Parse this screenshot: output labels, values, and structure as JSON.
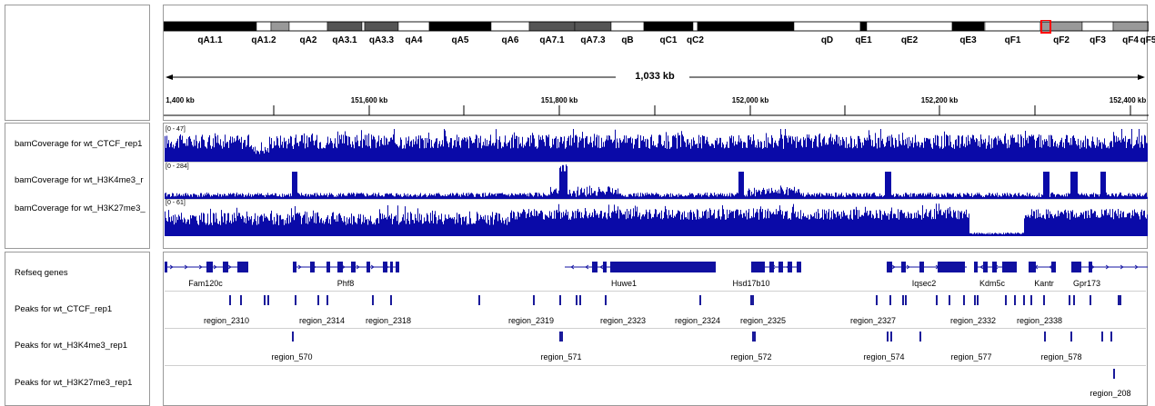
{
  "cytoband": {
    "bands": [
      {
        "name": "qA1.1",
        "stain": "black"
      },
      {
        "name": "qA1.2",
        "stain": "white"
      },
      {
        "name": "",
        "stain": "gray"
      },
      {
        "name": "qA2",
        "stain": "white"
      },
      {
        "name": "qA3.1",
        "stain": "dark"
      },
      {
        "name": "",
        "stain": "white"
      },
      {
        "name": "qA3.3",
        "stain": "dark"
      },
      {
        "name": "qA4",
        "stain": "white"
      },
      {
        "name": "qA5",
        "stain": "black"
      },
      {
        "name": "qA6",
        "stain": "white"
      },
      {
        "name": "qA7.1",
        "stain": "dark"
      },
      {
        "name": "qA7.3",
        "stain": "dark"
      },
      {
        "name": "qB",
        "stain": "white"
      },
      {
        "name": "qC1",
        "stain": "black"
      },
      {
        "name": "qC2",
        "stain": "white"
      },
      {
        "name": "",
        "stain": "black"
      },
      {
        "name": "qD",
        "stain": "white"
      },
      {
        "name": "qE1",
        "stain": "black"
      },
      {
        "name": "qE2",
        "stain": "white"
      },
      {
        "name": "qE3",
        "stain": "black"
      },
      {
        "name": "",
        "stain": "white"
      },
      {
        "name": "qF1",
        "stain": "white"
      },
      {
        "name": "qF2",
        "stain": "gray"
      },
      {
        "name": "qF3",
        "stain": "white"
      },
      {
        "name": "qF4",
        "stain": "gray"
      },
      {
        "name": "qF5",
        "stain": "white"
      }
    ],
    "colors": {
      "black": "#000000",
      "dark": "#555555",
      "gray": "#999999",
      "white": "#ffffff",
      "highlight": "#ff0000"
    }
  },
  "ruler": {
    "span_label": "1,033 kb",
    "ticks": [
      "1,400 kb",
      "151,600 kb",
      "151,800 kb",
      "152,000 kb",
      "152,200 kb",
      "152,400 kb"
    ]
  },
  "tracks": {
    "coverage": [
      {
        "name": "bamCoverage for wt_CTCF_rep1",
        "range": "[0 - 47]",
        "color": "#0a0aa8"
      },
      {
        "name": "bamCoverage for wt_H3K4me3_r",
        "range": "[0 - 284]",
        "color": "#0a0aa8"
      },
      {
        "name": "bamCoverage for wt_H3K27me3_",
        "range": "[0 - 61]",
        "color": "#0a0aa8"
      }
    ],
    "genes": {
      "name": "Refseq genes",
      "labels": [
        "Fam120c",
        "Phf8",
        "Huwe1",
        "Hsd17b10",
        "Iqsec2",
        "Kdm5c",
        "Kantr",
        "Gpr173"
      ],
      "color": "#1010a0"
    },
    "peaks": [
      {
        "name": "Peaks for wt_CTCF_rep1",
        "labels": [
          "region_2310",
          "region_2314",
          "region_2318",
          "region_2319",
          "region_2323",
          "region_2324",
          "region_2325",
          "region_2327",
          "region_2332",
          "region_2338"
        ]
      },
      {
        "name": "Peaks for wt_H3K4me3_rep1",
        "labels": [
          "region_570",
          "region_571",
          "region_572",
          "region_574",
          "region_577",
          "region_578"
        ]
      },
      {
        "name": "Peaks for wt_H3K27me3_rep1",
        "labels": [
          "region_208"
        ]
      }
    ],
    "peak_color": "#1a1a9a"
  }
}
